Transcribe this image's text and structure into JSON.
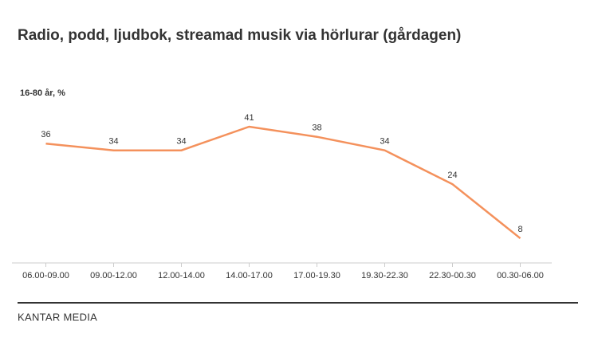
{
  "chart_data": {
    "type": "line",
    "title": "Radio, podd, ljudbok, streamad musik via hörlurar (gårdagen)",
    "y_label": "16-80 år, %",
    "categories": [
      "06.00-09.00",
      "09.00-12.00",
      "12.00-14.00",
      "14.00-17.00",
      "17.00-19.30",
      "19.30-22.30",
      "22.30-00.30",
      "00.30-06.00"
    ],
    "values": [
      36,
      34,
      34,
      41,
      38,
      34,
      24,
      8
    ],
    "color": "#f4915c",
    "ylim": [
      0,
      45
    ]
  },
  "footer": "KANTAR MEDIA"
}
